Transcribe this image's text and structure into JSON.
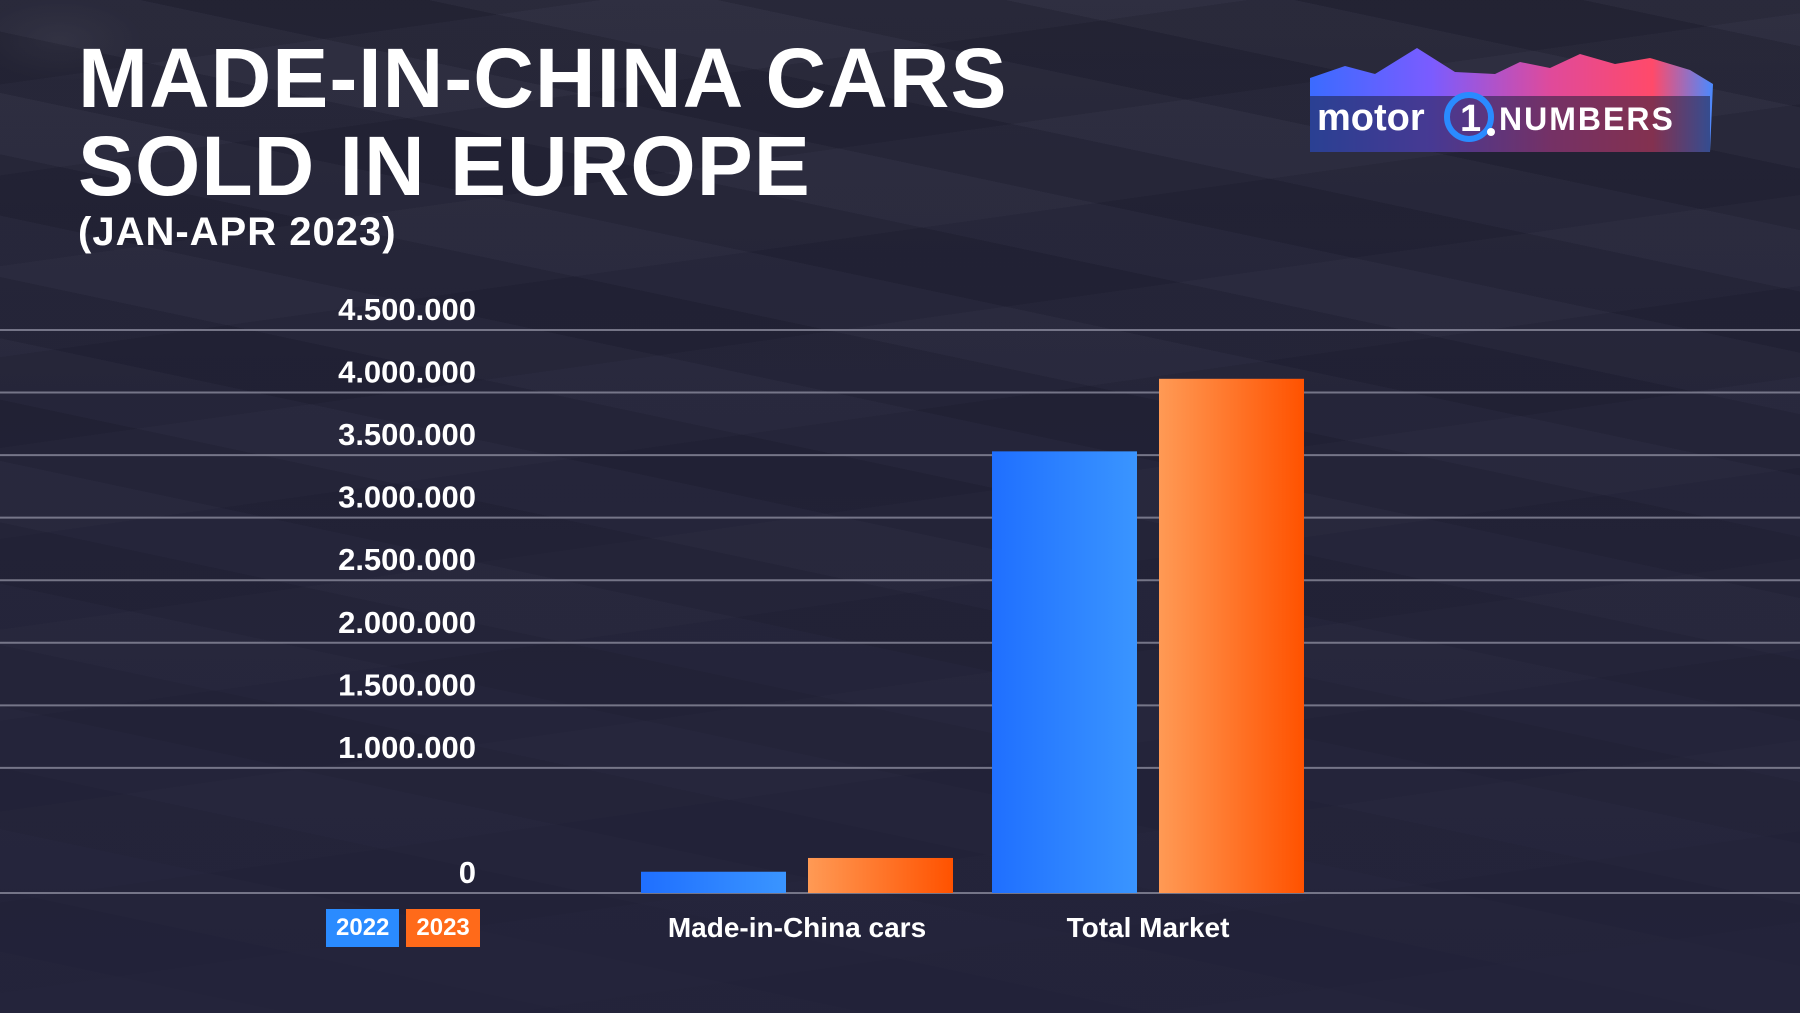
{
  "title_lines": [
    "MADE-IN-CHINA CARS",
    "SOLD IN EUROPE"
  ],
  "subtitle": "(JAN-APR 2023)",
  "logo": {
    "left": "motor",
    "mark": "1",
    "right": "NUMBERS"
  },
  "colors": {
    "series_2022": "#2a8bff",
    "series_2023": "#ff6a1a",
    "grid": "#8a8a9c",
    "text": "#ffffff"
  },
  "chart_data": {
    "type": "bar",
    "categories": [
      "Made-in-China cars",
      "Total Market"
    ],
    "series": [
      {
        "name": "2022",
        "values": [
          170000,
          3530000
        ]
      },
      {
        "name": "2023",
        "values": [
          280000,
          4110000
        ]
      }
    ],
    "ylim": [
      0,
      4500000
    ],
    "y_ticks": [
      0,
      1000000,
      1500000,
      2000000,
      2500000,
      3000000,
      3500000,
      4000000,
      4500000
    ],
    "y_tick_labels": [
      "0",
      "1.000.000",
      "1.500.000",
      "2.000.000",
      "2.500.000",
      "3.000.000",
      "3.500.000",
      "4.000.000",
      "4.500.000"
    ],
    "grid": true,
    "legend_position": "bottom-left",
    "title": "MADE-IN-CHINA CARS SOLD IN EUROPE",
    "subtitle": "(JAN-APR 2023)"
  }
}
